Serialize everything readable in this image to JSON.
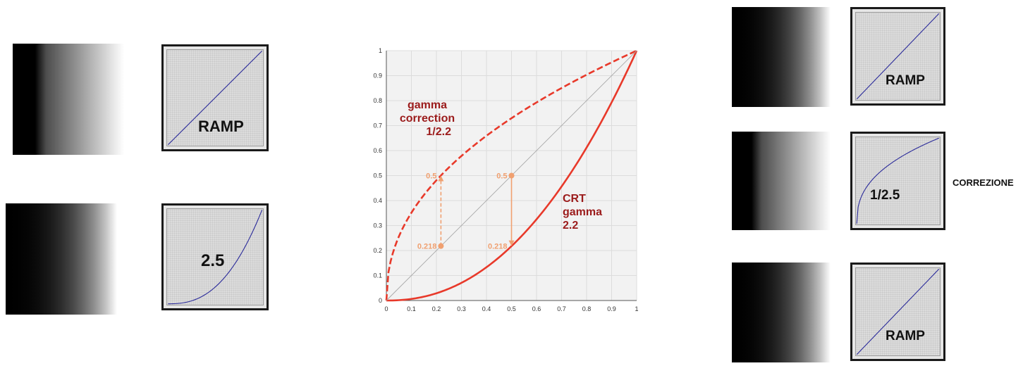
{
  "left_panels": [
    {
      "label": "RAMP",
      "gamma": 1.0
    },
    {
      "label": "2.5",
      "gamma": 2.5
    }
  ],
  "right_panels": [
    {
      "label": "RAMP",
      "gamma": 1.0
    },
    {
      "label": "1/2.5",
      "gamma": 0.4
    },
    {
      "label": "RAMP",
      "gamma": 1.0
    }
  ],
  "side_label": "CORREZIONE",
  "colors": {
    "curve": "#e8392a",
    "annotation": "#f0a070",
    "label_dark_red": "#9b1b1b",
    "panel_curve": "#2a2a9a"
  },
  "chart_data": {
    "type": "line",
    "xlim": [
      0,
      1
    ],
    "ylim": [
      0,
      1
    ],
    "grid": true,
    "x_ticks": [
      "0",
      "0.1",
      "0.2",
      "0.3",
      "0.4",
      "0.5",
      "0.6",
      "0.7",
      "0.8",
      "0.9",
      "1"
    ],
    "y_ticks": [
      "0",
      "0.1",
      "0.2",
      "0.3",
      "0.4",
      "0.5",
      "0.6",
      "0.7",
      "0.8",
      "0.9",
      "1"
    ],
    "series": [
      {
        "gamma": 0.4545,
        "style": "dashed",
        "x": [
          0,
          0.05,
          0.1,
          0.2,
          0.3,
          0.4,
          0.5,
          0.6,
          0.7,
          0.8,
          0.9,
          1
        ],
        "y": [
          0,
          0.256,
          0.351,
          0.481,
          0.578,
          0.659,
          0.73,
          0.793,
          0.85,
          0.904,
          0.953,
          1
        ]
      },
      {
        "gamma": 2.2,
        "style": "solid",
        "x": [
          0,
          0.1,
          0.2,
          0.3,
          0.4,
          0.5,
          0.6,
          0.7,
          0.8,
          0.9,
          1
        ],
        "y": [
          0,
          0.006,
          0.029,
          0.071,
          0.133,
          0.218,
          0.325,
          0.456,
          0.612,
          0.793,
          1
        ]
      },
      {
        "gamma": 1.0,
        "style": "thin",
        "x": [
          0,
          1
        ],
        "y": [
          0,
          1
        ]
      }
    ],
    "annotations": [
      {
        "text_top": "0.5",
        "text_bottom": "0.218",
        "x": 0.218,
        "y_from": 0.218,
        "y_to": 0.5,
        "style": "dashed",
        "direction": "up"
      },
      {
        "text_top": "0.5",
        "text_bottom": "0.218",
        "x": 0.5,
        "y_from": 0.5,
        "y_to": 0.218,
        "style": "solid",
        "direction": "down"
      }
    ],
    "curve_labels": [
      {
        "lines": [
          "gamma",
          "correction",
          "1/2.2"
        ]
      },
      {
        "lines": [
          "CRT",
          "gamma",
          "2.2"
        ]
      }
    ]
  }
}
